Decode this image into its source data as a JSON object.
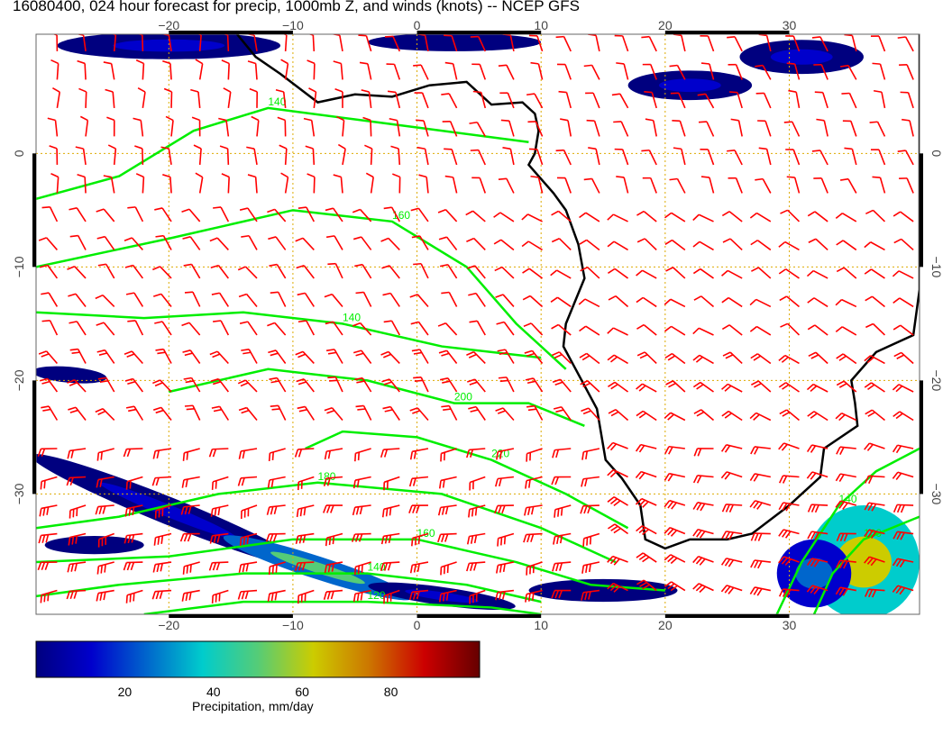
{
  "title": "16080400, 024 hour forecast for precip, 1000mb Z, and winds (knots) -- NCEP GFS",
  "chart_data": {
    "type": "map",
    "xlim": [
      -30.7,
      40.5
    ],
    "ylim": [
      -40.6,
      10.5
    ],
    "x_ticks": [
      -20,
      -10,
      0,
      10,
      20,
      30
    ],
    "x_tick_labels": [
      "−20",
      "−10",
      "0",
      "10",
      "20",
      "30"
    ],
    "y_ticks": [
      0,
      -10,
      -20,
      -30
    ],
    "y_tick_labels": [
      "0",
      "−10",
      "−20",
      "−30"
    ],
    "grid": true,
    "colors": {
      "contour": "#00ee00",
      "barb": "#ff0000",
      "coast": "#000000",
      "grid": "#ddaa00"
    },
    "colorbar": {
      "label": "Precipitation, mm/day",
      "range": [
        0,
        100
      ],
      "ticks": [
        20,
        40,
        60,
        80
      ],
      "tick_labels": [
        "20",
        "40",
        "60",
        "80"
      ],
      "colors": [
        "#00007f",
        "#0000cc",
        "#0066cc",
        "#00cccc",
        "#55cc77",
        "#cccc00",
        "#cc7700",
        "#cc0000",
        "#660000"
      ]
    },
    "coastline": [
      [
        -14.5,
        10.5
      ],
      [
        -13,
        8.5
      ],
      [
        -11,
        7
      ],
      [
        -8,
        4.5
      ],
      [
        -5,
        5.2
      ],
      [
        -2,
        5
      ],
      [
        1,
        6
      ],
      [
        4,
        6.3
      ],
      [
        6,
        4.3
      ],
      [
        8.5,
        4.5
      ],
      [
        9.5,
        3.5
      ],
      [
        9.8,
        2
      ],
      [
        9.5,
        0
      ],
      [
        9,
        -1
      ],
      [
        11,
        -3.5
      ],
      [
        12,
        -5
      ],
      [
        13,
        -8
      ],
      [
        13.5,
        -11
      ],
      [
        12,
        -15
      ],
      [
        11.8,
        -17
      ],
      [
        14.5,
        -22.5
      ],
      [
        15.2,
        -27
      ],
      [
        16.5,
        -28.6
      ],
      [
        18,
        -31
      ],
      [
        18.4,
        -34
      ],
      [
        20,
        -34.8
      ],
      [
        22,
        -34
      ],
      [
        25,
        -34
      ],
      [
        27,
        -33.5
      ],
      [
        30,
        -31
      ],
      [
        32.5,
        -28.5
      ],
      [
        32.8,
        -26
      ],
      [
        35.5,
        -24
      ],
      [
        35.3,
        -22
      ],
      [
        35,
        -20
      ],
      [
        37,
        -17.5
      ],
      [
        40,
        -16
      ],
      [
        40.5,
        -12
      ]
    ],
    "contours": [
      {
        "value": 140,
        "label": "140",
        "points": [
          [
            -30.7,
            -4
          ],
          [
            -24,
            -2
          ],
          [
            -18,
            2
          ],
          [
            -12,
            4
          ],
          [
            -5,
            3
          ],
          [
            2,
            2
          ],
          [
            9,
            1
          ]
        ]
      },
      {
        "value": 140,
        "label": "140",
        "points": [
          [
            -30.7,
            -14
          ],
          [
            -22,
            -14.5
          ],
          [
            -14,
            -14
          ],
          [
            -6,
            -15
          ],
          [
            2,
            -17
          ],
          [
            10,
            -18
          ]
        ]
      },
      {
        "value": 160,
        "label": "160",
        "points": [
          [
            -30.7,
            -10
          ],
          [
            -20,
            -7.5
          ],
          [
            -10,
            -5
          ],
          [
            -2,
            -6
          ],
          [
            4,
            -10
          ],
          [
            8,
            -15
          ],
          [
            12,
            -19
          ]
        ]
      },
      {
        "value": 200,
        "label": "200",
        "points": [
          [
            -20,
            -21
          ],
          [
            -12,
            -19
          ],
          [
            -4,
            -20
          ],
          [
            3,
            -22
          ],
          [
            9,
            -22
          ],
          [
            13.5,
            -24
          ]
        ]
      },
      {
        "value": 220,
        "label": "220",
        "points": [
          [
            -9,
            -26
          ],
          [
            -6,
            -24.5
          ],
          [
            0,
            -25
          ],
          [
            6,
            -27
          ],
          [
            12,
            -30
          ],
          [
            17,
            -33
          ]
        ]
      },
      {
        "value": 180,
        "label": "180",
        "points": [
          [
            -30.7,
            -33
          ],
          [
            -24,
            -32
          ],
          [
            -16,
            -30
          ],
          [
            -8,
            -29
          ],
          [
            2,
            -30
          ],
          [
            10,
            -33
          ],
          [
            16,
            -36
          ]
        ]
      },
      {
        "value": 160,
        "label": "160",
        "points": [
          [
            -30.7,
            -36
          ],
          [
            -20,
            -35.5
          ],
          [
            -10,
            -34
          ],
          [
            0,
            -34
          ],
          [
            8,
            -36
          ],
          [
            14,
            -38
          ],
          [
            20,
            -38.5
          ]
        ]
      },
      {
        "value": 140,
        "label": "140",
        "points": [
          [
            -30.7,
            -39
          ],
          [
            -24,
            -38
          ],
          [
            -14,
            -37
          ],
          [
            -4,
            -37
          ],
          [
            4,
            -38
          ],
          [
            10,
            -39.5
          ]
        ]
      },
      {
        "value": 120,
        "label": "120",
        "points": [
          [
            -22,
            -40.6
          ],
          [
            -14,
            -39.5
          ],
          [
            -4,
            -39.5
          ],
          [
            6,
            -40
          ],
          [
            10,
            -40.6
          ]
        ]
      },
      {
        "value": 140,
        "label": "140",
        "points": [
          [
            29,
            -40.6
          ],
          [
            31,
            -36
          ],
          [
            34,
            -31
          ],
          [
            37,
            -28
          ],
          [
            40.5,
            -26
          ]
        ]
      },
      {
        "value": 160,
        "label": "160",
        "points": [
          [
            32,
            -40.6
          ],
          [
            33.5,
            -37
          ],
          [
            36,
            -34
          ],
          [
            40.5,
            -32
          ]
        ]
      }
    ],
    "precip_areas": [
      {
        "lon": -20,
        "lat": -31.5,
        "rx": 12,
        "ry": 1.2,
        "rot": 22,
        "mmday": 12
      },
      {
        "lon": -8,
        "lat": -36.5,
        "rx": 8,
        "ry": 1.0,
        "rot": 18,
        "mmday": 30
      },
      {
        "lon": 2,
        "lat": -39,
        "rx": 6,
        "ry": 0.8,
        "rot": 8,
        "mmday": 8
      },
      {
        "lon": 15,
        "lat": -38.5,
        "rx": 6,
        "ry": 1.0,
        "rot": 0,
        "mmday": 6
      },
      {
        "lon": 36,
        "lat": -36,
        "rx": 4.5,
        "ry": 5,
        "rot": 0,
        "mmday": 40
      },
      {
        "lon": 32,
        "lat": -37,
        "rx": 3,
        "ry": 3,
        "rot": 0,
        "mmday": 15
      },
      {
        "lon": -20,
        "lat": 9.5,
        "rx": 9,
        "ry": 1.2,
        "rot": 0,
        "mmday": 10
      },
      {
        "lon": 3,
        "lat": 9.8,
        "rx": 7,
        "ry": 0.8,
        "rot": 0,
        "mmday": 6
      },
      {
        "lon": 22,
        "lat": 6,
        "rx": 5,
        "ry": 1.3,
        "rot": 0,
        "mmday": 8
      },
      {
        "lon": 31,
        "lat": 8.5,
        "rx": 5,
        "ry": 1.5,
        "rot": 0,
        "mmday": 8
      },
      {
        "lon": -28,
        "lat": -19.5,
        "rx": 3,
        "ry": 0.7,
        "rot": 5,
        "mmday": 5
      },
      {
        "lon": -26,
        "lat": -34.5,
        "rx": 4,
        "ry": 0.8,
        "rot": 0,
        "mmday": 5
      }
    ]
  }
}
